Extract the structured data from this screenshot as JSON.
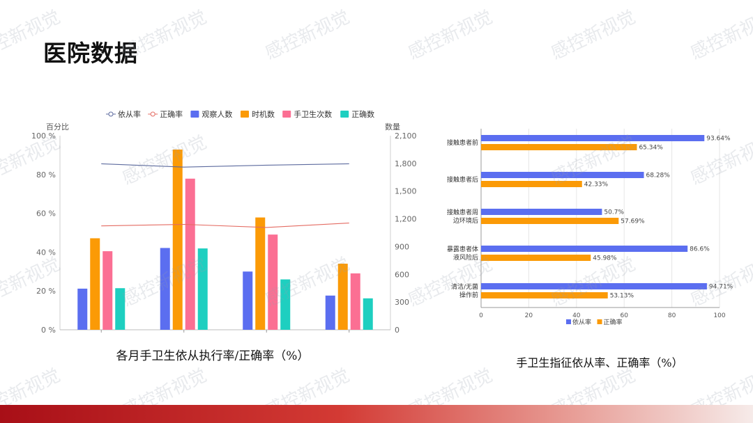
{
  "page": {
    "title": "医院数据",
    "watermark": "感控新视觉"
  },
  "captions": {
    "left": "各月手卫生依从执行率/正确率（%）",
    "right": "手卫生指征依从率、正确率（%）"
  },
  "colors": {
    "observers": "#5b6ef0",
    "opportunities": "#fb9a06",
    "hand_hygiene": "#fb6f93",
    "correct_count": "#1ecfc0",
    "compliance_line": "#5c6a9e",
    "correct_line": "#e46b62",
    "footer_start": "#a80f17"
  },
  "chart_data": [
    {
      "type": "bar",
      "legend": {
        "placement": "top",
        "items": [
          "依从率",
          "正确率",
          "观察人数",
          "时机数",
          "手卫生次数",
          "正确数"
        ]
      },
      "ylabel_left": "百分比",
      "ylabel_right": "数量",
      "yticks_left": [
        "0 %",
        "20 %",
        "40 %",
        "60 %",
        "80 %",
        "100 %"
      ],
      "yticks_right": [
        "0",
        "300",
        "600",
        "900",
        "1,200",
        "1,500",
        "1,800",
        "2,100"
      ],
      "ylim_left": [
        0,
        100
      ],
      "ylim_right": [
        0,
        2100
      ],
      "categories": [
        "",
        "",
        "",
        ""
      ],
      "series": [
        {
          "name": "观察人数",
          "axis": "right",
          "values": [
            445,
            885,
            630,
            370
          ]
        },
        {
          "name": "时机数",
          "axis": "right",
          "values": [
            990,
            1950,
            1215,
            715
          ]
        },
        {
          "name": "手卫生次数",
          "axis": "right",
          "values": [
            850,
            1635,
            1030,
            610
          ]
        },
        {
          "name": "正确数",
          "axis": "right",
          "values": [
            450,
            880,
            545,
            340
          ]
        }
      ],
      "lines": [
        {
          "name": "依从率",
          "axis": "left",
          "values": [
            85.5,
            83.8,
            84.8,
            85.5
          ]
        },
        {
          "name": "正确率",
          "axis": "left",
          "values": [
            53.5,
            54.3,
            52.7,
            55.0
          ]
        }
      ]
    },
    {
      "type": "bar",
      "orientation": "horizontal",
      "categories": [
        [
          "接触患者前"
        ],
        [
          "接触患者后"
        ],
        [
          "接触患者周",
          "边环境后"
        ],
        [
          "暴露患者体",
          "液风险后"
        ],
        [
          "清洁/无菌",
          "操作前"
        ]
      ],
      "xticks": [
        "0",
        "20",
        "40",
        "60",
        "80",
        "100"
      ],
      "xlim": [
        0,
        100
      ],
      "legend": {
        "placement": "bottom",
        "items": [
          "依从率",
          "正确率"
        ]
      },
      "series": [
        {
          "name": "依从率",
          "values": [
            93.64,
            68.28,
            50.7,
            86.6,
            94.71
          ],
          "labels": [
            "93.64%",
            "68.28%",
            "50.7%",
            "86.6%",
            "94.71%"
          ]
        },
        {
          "name": "正确率",
          "values": [
            65.34,
            42.33,
            57.69,
            45.98,
            53.13
          ],
          "labels": [
            "65.34%",
            "42.33%",
            "57.69%",
            "45.98%",
            "53.13%"
          ]
        }
      ]
    }
  ]
}
